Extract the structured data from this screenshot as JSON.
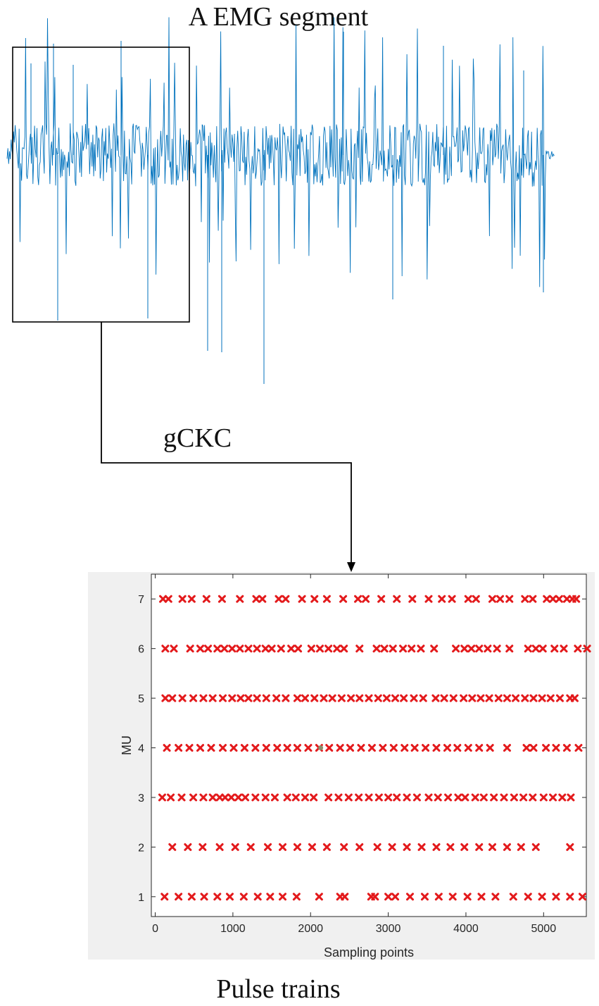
{
  "emg": {
    "title": "A EMG segment",
    "arrow_label": "gCKC",
    "signal_color": "#0072BD"
  },
  "chart_data": {
    "type": "scatter",
    "title": "Pulse trains",
    "xlabel": "Sampling points",
    "ylabel": "MU",
    "xlim": [
      -50,
      5550
    ],
    "ylim": [
      0.6,
      7.5
    ],
    "xticks": [
      0,
      1000,
      2000,
      3000,
      4000,
      5000
    ],
    "yticks": [
      1,
      2,
      3,
      4,
      5,
      6,
      7
    ],
    "grid": false,
    "marker": "x",
    "marker_color": "#E31A1C",
    "background": "#F0F0F0",
    "series": [
      {
        "y": 1,
        "x": [
          120,
          300,
          470,
          630,
          800,
          960,
          1140,
          1320,
          1480,
          1640,
          1820,
          2110,
          2380,
          2440,
          2780,
          2830,
          3000,
          3090,
          3280,
          3470,
          3650,
          3830,
          4020,
          4200,
          4380,
          4610,
          4800,
          4980,
          5160,
          5340,
          5500
        ]
      },
      {
        "y": 2,
        "x": [
          220,
          420,
          610,
          830,
          1030,
          1230,
          1450,
          1640,
          1830,
          2020,
          2210,
          2430,
          2630,
          2860,
          3050,
          3240,
          3430,
          3620,
          3800,
          3980,
          4170,
          4340,
          4530,
          4710,
          4900,
          5340
        ]
      },
      {
        "y": 3,
        "x": [
          90,
          200,
          340,
          490,
          620,
          740,
          830,
          900,
          980,
          1070,
          1160,
          1290,
          1420,
          1540,
          1700,
          1810,
          1930,
          2040,
          2230,
          2360,
          2490,
          2620,
          2750,
          2880,
          3000,
          3110,
          3240,
          3370,
          3520,
          3640,
          3770,
          3900,
          3990,
          4120,
          4230,
          4360,
          4490,
          4620,
          4740,
          4860,
          5000,
          5120,
          5240,
          5350
        ]
      },
      {
        "y": 4,
        "x": [
          150,
          300,
          440,
          580,
          720,
          870,
          1010,
          1150,
          1290,
          1430,
          1570,
          1700,
          1830,
          1970,
          2110,
          2240,
          2380,
          2510,
          2650,
          2790,
          2930,
          3070,
          3210,
          3340,
          3480,
          3620,
          3760,
          3890,
          4030,
          4170,
          4310,
          4530,
          4780,
          4870,
          5030,
          5160,
          5300,
          5450
        ]
      },
      {
        "y": 5,
        "x": [
          130,
          220,
          350,
          490,
          620,
          740,
          870,
          990,
          1100,
          1200,
          1310,
          1430,
          1560,
          1680,
          1830,
          1930,
          2050,
          2170,
          2280,
          2400,
          2520,
          2630,
          2750,
          2870,
          2980,
          3090,
          3200,
          3330,
          3450,
          3610,
          3720,
          3840,
          3970,
          4080,
          4190,
          4300,
          4420,
          4530,
          4640,
          4760,
          4870,
          4980,
          5090,
          5210,
          5340,
          5400
        ]
      },
      {
        "y": 6,
        "x": [
          130,
          240,
          450,
          580,
          680,
          800,
          890,
          990,
          1090,
          1200,
          1310,
          1420,
          1500,
          1620,
          1750,
          1840,
          2010,
          2120,
          2230,
          2340,
          2430,
          2630,
          2850,
          2950,
          3060,
          3190,
          3300,
          3420,
          3590,
          3870,
          3980,
          4070,
          4170,
          4280,
          4400,
          4560,
          4800,
          4900,
          4990,
          5140,
          5260,
          5440,
          5560
        ]
      },
      {
        "y": 7,
        "x": [
          100,
          170,
          350,
          470,
          660,
          860,
          1090,
          1300,
          1380,
          1590,
          1680,
          1890,
          2050,
          2210,
          2420,
          2610,
          2710,
          2910,
          3110,
          3310,
          3520,
          3690,
          3820,
          4030,
          4130,
          4340,
          4440,
          4560,
          4760,
          4860,
          5040,
          5120,
          5200,
          5300,
          5370,
          5420
        ]
      }
    ],
    "outlier_point": {
      "x": 2130,
      "y": 4,
      "color": "#8A8F6E"
    }
  }
}
